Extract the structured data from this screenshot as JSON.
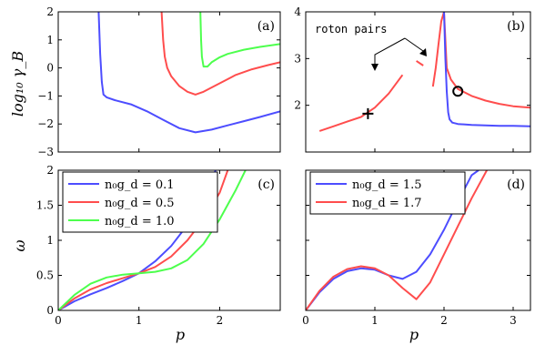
{
  "colors": {
    "blue": "#4d4dff",
    "red": "#ff4d4d",
    "green": "#4dff4d"
  },
  "labels": {
    "ylabel_top": "log₁₀ γ_B",
    "ylabel_bottom": "ω",
    "xlabel": "p"
  },
  "chart_data": [
    {
      "panel": "a",
      "label": "(a)",
      "type": "line",
      "xlim": [
        0,
        2.75
      ],
      "ylim": [
        -3,
        2
      ],
      "xticks": [
        0,
        1,
        2
      ],
      "xtick_labels": [
        "",
        "",
        ""
      ],
      "yticks": [
        -3,
        -2,
        -1,
        0,
        1,
        2
      ],
      "ytick_labels": [
        "−3",
        "−2",
        "−1",
        "0",
        "1",
        "2"
      ],
      "series": [
        {
          "color": "blue",
          "x": [
            0.5,
            0.52,
            0.54,
            0.56,
            0.6,
            0.7,
            0.9,
            1.1,
            1.3,
            1.5,
            1.7,
            1.9,
            2.1,
            2.3,
            2.5,
            2.75
          ],
          "y": [
            2,
            0.5,
            -0.5,
            -0.95,
            -1.05,
            -1.15,
            -1.3,
            -1.55,
            -1.85,
            -2.15,
            -2.3,
            -2.2,
            -2.05,
            -1.9,
            -1.75,
            -1.55
          ]
        },
        {
          "color": "red",
          "x": [
            1.28,
            1.3,
            1.32,
            1.35,
            1.4,
            1.5,
            1.6,
            1.7,
            1.8,
            2.0,
            2.2,
            2.4,
            2.6,
            2.75
          ],
          "y": [
            2,
            1.0,
            0.4,
            0.0,
            -0.3,
            -0.65,
            -0.85,
            -0.95,
            -0.85,
            -0.55,
            -0.25,
            -0.05,
            0.1,
            0.2
          ]
        },
        {
          "color": "green",
          "x": [
            1.76,
            1.77,
            1.78,
            1.8,
            1.85,
            1.9,
            2.0,
            2.1,
            2.3,
            2.5,
            2.75
          ],
          "y": [
            2,
            1.0,
            0.4,
            0.05,
            0.05,
            0.2,
            0.38,
            0.5,
            0.65,
            0.75,
            0.85
          ]
        }
      ]
    },
    {
      "panel": "b",
      "label": "(b)",
      "type": "line",
      "xlim": [
        0,
        3.25
      ],
      "ylim": [
        1,
        4
      ],
      "xticks": [
        0,
        1,
        2,
        3
      ],
      "xtick_labels": [
        "",
        "",
        "",
        ""
      ],
      "yticks": [
        1,
        2,
        3,
        4
      ],
      "ytick_labels": [
        "",
        "2",
        "3",
        "4"
      ],
      "annotation": "roton pairs",
      "series": [
        {
          "color": "red",
          "x": [
            0.2,
            0.4,
            0.6,
            0.8,
            1.0,
            1.2,
            1.4
          ],
          "y": [
            1.45,
            1.55,
            1.65,
            1.75,
            1.95,
            2.25,
            2.65
          ]
        },
        {
          "color": "red",
          "x": [
            1.6,
            1.7
          ],
          "y": [
            2.95,
            2.85
          ]
        },
        {
          "color": "red",
          "x": [
            1.84,
            1.88,
            1.92,
            1.96,
            2.0,
            2.04,
            2.1,
            2.2,
            2.4,
            2.6,
            2.8,
            3.0,
            3.25
          ],
          "y": [
            2.4,
            2.8,
            3.3,
            3.8,
            4.0,
            2.8,
            2.55,
            2.35,
            2.2,
            2.1,
            2.03,
            1.98,
            1.95
          ]
        },
        {
          "color": "blue",
          "x": [
            2.0,
            2.02,
            2.04,
            2.06,
            2.08,
            2.12,
            2.2,
            2.4,
            2.6,
            2.8,
            3.0,
            3.25
          ],
          "y": [
            4.0,
            3.0,
            2.3,
            1.85,
            1.7,
            1.63,
            1.6,
            1.58,
            1.57,
            1.56,
            1.56,
            1.55
          ]
        }
      ],
      "markers": [
        {
          "shape": "plus",
          "x": 0.9,
          "y": 1.82
        },
        {
          "shape": "circle",
          "x": 2.2,
          "y": 2.3
        }
      ]
    },
    {
      "panel": "c",
      "label": "(c)",
      "type": "line",
      "xlim": [
        0,
        2.75
      ],
      "ylim": [
        0,
        2
      ],
      "xticks": [
        0,
        1,
        2
      ],
      "xtick_labels": [
        "0",
        "1",
        "2"
      ],
      "yticks": [
        0,
        0.5,
        1,
        1.5,
        2
      ],
      "ytick_labels": [
        "0",
        "0.5",
        "1",
        "1.5",
        "2"
      ],
      "legend": [
        "n₀g_d = 0.1",
        "n₀g_d = 0.5",
        "n₀g_d = 1.0"
      ],
      "series": [
        {
          "name": "n₀g_d = 0.1",
          "color": "blue",
          "x": [
            0,
            0.2,
            0.4,
            0.6,
            0.8,
            1.0,
            1.2,
            1.4,
            1.6,
            1.8,
            1.95
          ],
          "y": [
            0,
            0.13,
            0.23,
            0.32,
            0.42,
            0.53,
            0.7,
            0.92,
            1.22,
            1.6,
            2.0
          ]
        },
        {
          "name": "n₀g_d = 0.5",
          "color": "red",
          "x": [
            0,
            0.2,
            0.4,
            0.6,
            0.8,
            1.0,
            1.2,
            1.4,
            1.6,
            1.8,
            2.0,
            2.1
          ],
          "y": [
            0,
            0.17,
            0.3,
            0.39,
            0.46,
            0.53,
            0.62,
            0.77,
            1.0,
            1.3,
            1.68,
            2.0
          ]
        },
        {
          "name": "n₀g_d = 1.0",
          "color": "green",
          "x": [
            0,
            0.2,
            0.4,
            0.6,
            0.8,
            1.0,
            1.2,
            1.4,
            1.6,
            1.8,
            2.0,
            2.2,
            2.32
          ],
          "y": [
            0,
            0.22,
            0.38,
            0.47,
            0.51,
            0.53,
            0.55,
            0.6,
            0.72,
            0.95,
            1.3,
            1.72,
            2.0
          ]
        }
      ]
    },
    {
      "panel": "d",
      "label": "(d)",
      "type": "line",
      "xlim": [
        0,
        3.25
      ],
      "ylim": [
        0,
        2
      ],
      "xticks": [
        0,
        1,
        2,
        3
      ],
      "xtick_labels": [
        "0",
        "1",
        "2",
        "3"
      ],
      "yticks": [
        0,
        0.5,
        1,
        1.5,
        2
      ],
      "ytick_labels": [
        "",
        "",
        "",
        "",
        ""
      ],
      "legend": [
        "n₀g_d = 1.5",
        "n₀g_d = 1.7"
      ],
      "series": [
        {
          "name": "n₀g_d = 1.5",
          "color": "blue",
          "x": [
            0,
            0.2,
            0.4,
            0.6,
            0.8,
            1.0,
            1.2,
            1.4,
            1.6,
            1.8,
            2.0,
            2.2,
            2.4,
            2.5
          ],
          "y": [
            0,
            0.26,
            0.45,
            0.56,
            0.6,
            0.58,
            0.5,
            0.45,
            0.55,
            0.8,
            1.15,
            1.55,
            1.93,
            2.0
          ]
        },
        {
          "name": "n₀g_d = 1.7",
          "color": "red",
          "x": [
            0,
            0.2,
            0.4,
            0.6,
            0.8,
            1.0,
            1.2,
            1.4,
            1.6,
            1.8,
            2.0,
            2.2,
            2.4,
            2.62
          ],
          "y": [
            0,
            0.28,
            0.48,
            0.59,
            0.63,
            0.6,
            0.5,
            0.32,
            0.16,
            0.4,
            0.8,
            1.2,
            1.6,
            2.0
          ]
        }
      ]
    }
  ]
}
